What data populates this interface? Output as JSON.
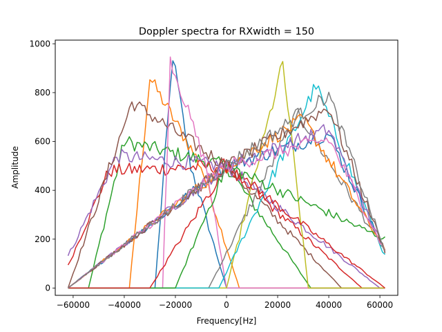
{
  "chart_data": {
    "type": "line",
    "title": "Doppler spectra for RXwidth = 150",
    "xlabel": "Frequency[Hz]",
    "ylabel": "Amplitude",
    "xlim": [
      -67000,
      67000
    ],
    "ylim": [
      -30,
      1015
    ],
    "xticks": [
      -60000,
      -40000,
      -20000,
      0,
      20000,
      40000,
      60000
    ],
    "xtick_labels": [
      "−60000",
      "−40000",
      "−20000",
      "0",
      "20000",
      "40000",
      "60000"
    ],
    "yticks": [
      0,
      200,
      400,
      600,
      800,
      1000
    ],
    "ytick_labels": [
      "0",
      "200",
      "400",
      "600",
      "800",
      "1000"
    ],
    "grid": false,
    "x_range_hz": [
      -62000,
      62000
    ],
    "points_per_series": 125,
    "series": [
      {
        "color": "#1f77b4",
        "peak_x": -21000,
        "x": [
          -62000,
          -28000,
          -21000,
          -14000,
          0,
          62000
        ],
        "y": [
          0,
          0,
          950,
          500,
          0,
          0
        ]
      },
      {
        "color": "#ff7f0e",
        "peak_x": -30000,
        "x": [
          -62000,
          -38000,
          -30000,
          -10000,
          5000,
          62000
        ],
        "y": [
          0,
          0,
          860,
          500,
          0,
          0
        ]
      },
      {
        "color": "#2ca02c",
        "peak_x": -40000,
        "x": [
          -62000,
          -54000,
          -40000,
          0,
          33000,
          62000
        ],
        "y": [
          0,
          0,
          600,
          500,
          0,
          0
        ]
      },
      {
        "color": "#d62728",
        "peak_x": -46000,
        "x": [
          -62000,
          -46000,
          0,
          53000,
          62000
        ],
        "y": [
          90,
          480,
          500,
          0,
          0
        ]
      },
      {
        "color": "#9467bd",
        "peak_x": -43000,
        "x": [
          -62000,
          -43000,
          0,
          60000,
          62000
        ],
        "y": [
          130,
          540,
          500,
          0,
          0
        ]
      },
      {
        "color": "#8c564b",
        "peak_x": -37000,
        "x": [
          -62000,
          -37000,
          0,
          45000,
          62000
        ],
        "y": [
          0,
          760,
          500,
          0,
          0
        ]
      },
      {
        "color": "#e377c2",
        "peak_x": -22000,
        "x": [
          -62000,
          -25000,
          -22000,
          -8000,
          0,
          62000
        ],
        "y": [
          0,
          0,
          940,
          500,
          0,
          0
        ]
      },
      {
        "color": "#7f7f7f",
        "peak_x": 28000,
        "x": [
          -62000,
          -7000,
          28000,
          62000
        ],
        "y": [
          0,
          0,
          720,
          150
        ]
      },
      {
        "color": "#bcbd22",
        "peak_x": 22000,
        "x": [
          -62000,
          0,
          22000,
          32000,
          62000
        ],
        "y": [
          0,
          0,
          920,
          0,
          0
        ]
      },
      {
        "color": "#17becf",
        "peak_x": 35000,
        "x": [
          -62000,
          -3000,
          35000,
          62000
        ],
        "y": [
          0,
          0,
          830,
          130
        ]
      },
      {
        "color": "#1f77b4",
        "peak_x": 40000,
        "x": [
          -62000,
          0,
          40000,
          62000
        ],
        "y": [
          0,
          500,
          630,
          150
        ]
      },
      {
        "color": "#ff7f0e",
        "peak_x": 30000,
        "x": [
          -62000,
          0,
          30000,
          62000
        ],
        "y": [
          0,
          500,
          690,
          160
        ]
      },
      {
        "color": "#2ca02c",
        "peak_x": 0,
        "x": [
          -62000,
          -20000,
          0,
          62000
        ],
        "y": [
          0,
          0,
          500,
          200
        ]
      },
      {
        "color": "#d62728",
        "peak_x": 0,
        "x": [
          -62000,
          -30000,
          0,
          62000
        ],
        "y": [
          0,
          0,
          500,
          0
        ]
      },
      {
        "color": "#9467bd",
        "peak_x": 40000,
        "x": [
          -62000,
          0,
          40000,
          62000
        ],
        "y": [
          0,
          500,
          650,
          150
        ]
      },
      {
        "color": "#8c564b",
        "peak_x": 40000,
        "x": [
          -62000,
          0,
          40000,
          62000
        ],
        "y": [
          0,
          500,
          740,
          150
        ]
      },
      {
        "color": "#e377c2",
        "peak_x": 40000,
        "x": [
          -62000,
          0,
          40000,
          62000
        ],
        "y": [
          0,
          500,
          610,
          150
        ]
      },
      {
        "color": "#7f7f7f",
        "peak_x": 40000,
        "x": [
          -62000,
          0,
          40000,
          62000
        ],
        "y": [
          0,
          500,
          790,
          150
        ]
      }
    ]
  }
}
